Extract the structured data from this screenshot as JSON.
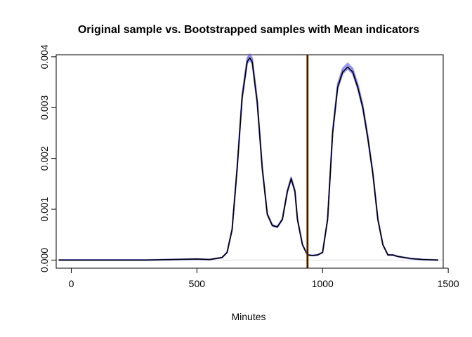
{
  "chart_data": {
    "type": "line",
    "title": "Original sample vs. Bootstrapped samples with Mean indicators",
    "xlabel": "Minutes",
    "ylabel": "",
    "xlim": [
      -60,
      1480
    ],
    "ylim": [
      -0.00016,
      0.00404
    ],
    "x_ticks": [
      0,
      500,
      1000,
      1500
    ],
    "x_tick_labels": [
      "0",
      "500",
      "1000",
      "1500"
    ],
    "y_ticks": [
      0.0,
      0.001,
      0.002,
      0.003,
      0.004
    ],
    "y_tick_labels": [
      "0.000",
      "0.001",
      "0.002",
      "0.003",
      "0.004"
    ],
    "grid": false,
    "baseline": 0,
    "baseline_color": "#d9d9d9",
    "bootstrap_color": "#5b5bf0",
    "density_color": "#000000",
    "mean_line_color": "#7a4a10",
    "mean_line_x": 940,
    "density_x": [
      -50,
      0,
      100,
      200,
      300,
      400,
      500,
      550,
      600,
      620,
      640,
      660,
      680,
      700,
      710,
      720,
      740,
      760,
      780,
      800,
      820,
      840,
      860,
      875,
      890,
      900,
      920,
      940,
      960,
      980,
      1000,
      1020,
      1040,
      1060,
      1080,
      1100,
      1120,
      1140,
      1160,
      1180,
      1200,
      1220,
      1240,
      1260,
      1280,
      1300,
      1350,
      1400,
      1460
    ],
    "density_y": [
      0.0,
      0.0,
      0.0,
      0.0,
      0.0,
      1e-05,
      2e-05,
      1e-05,
      5e-05,
      0.00015,
      0.0006,
      0.0018,
      0.0032,
      0.0039,
      0.00398,
      0.0039,
      0.0031,
      0.0018,
      0.0009,
      0.00068,
      0.00065,
      0.0008,
      0.00135,
      0.0016,
      0.00135,
      0.0008,
      0.0003,
      0.0001,
      9e-05,
      0.0001,
      0.00015,
      0.0008,
      0.0025,
      0.0034,
      0.0037,
      0.0038,
      0.0037,
      0.0034,
      0.003,
      0.0024,
      0.0017,
      0.0008,
      0.0003,
      0.0001,
      0.0001,
      7e-05,
      3e-05,
      1e-05,
      0.0
    ]
  }
}
